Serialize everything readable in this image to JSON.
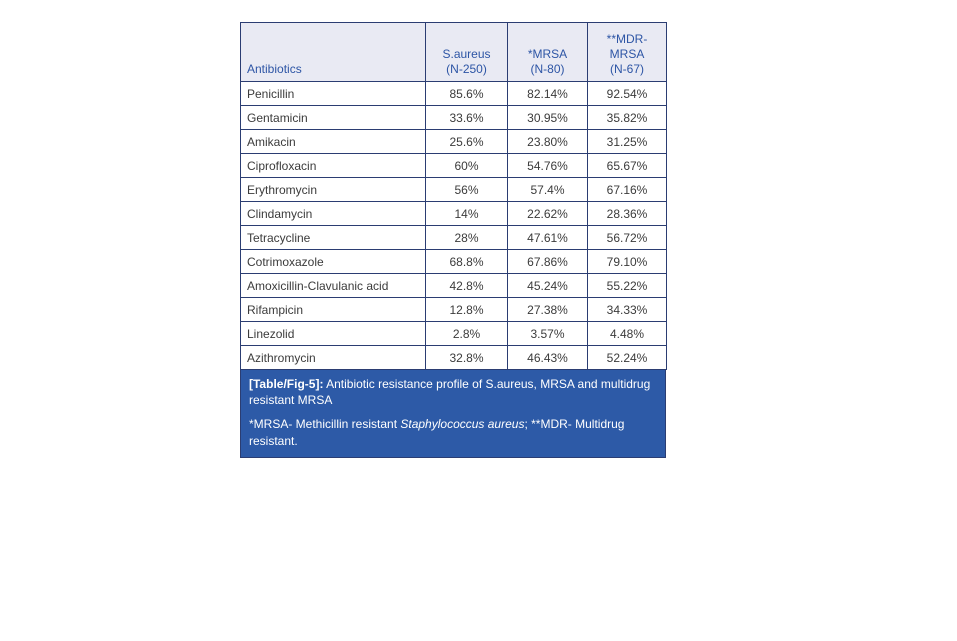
{
  "colors": {
    "header_bg": "#e9eaf3",
    "header_text": "#2d55a5",
    "grid_border": "#2b3d72",
    "body_text": "#3b3b3b",
    "caption_bg": "#2d5aa7",
    "caption_text": "#ffffff",
    "page_bg": "#ffffff"
  },
  "table": {
    "columns": {
      "antibiotics": "Antibiotics",
      "saureus": "S.aureus\n(N-250)",
      "mrsa": "*MRSA\n(N-80)",
      "mdr_mrsa": "**MDR-\nMRSA\n(N-67)"
    },
    "rows": [
      {
        "antibiotic": "Penicillin",
        "saureus": "85.6%",
        "mrsa": "82.14%",
        "mdr_mrsa": "92.54%"
      },
      {
        "antibiotic": "Gentamicin",
        "saureus": "33.6%",
        "mrsa": "30.95%",
        "mdr_mrsa": "35.82%"
      },
      {
        "antibiotic": "Amikacin",
        "saureus": "25.6%",
        "mrsa": "23.80%",
        "mdr_mrsa": "31.25%"
      },
      {
        "antibiotic": "Ciprofloxacin",
        "saureus": "60%",
        "mrsa": "54.76%",
        "mdr_mrsa": "65.67%"
      },
      {
        "antibiotic": "Erythromycin",
        "saureus": "56%",
        "mrsa": "57.4%",
        "mdr_mrsa": "67.16%"
      },
      {
        "antibiotic": "Clindamycin",
        "saureus": "14%",
        "mrsa": "22.62%",
        "mdr_mrsa": "28.36%"
      },
      {
        "antibiotic": "Tetracycline",
        "saureus": "28%",
        "mrsa": "47.61%",
        "mdr_mrsa": "56.72%"
      },
      {
        "antibiotic": "Cotrimoxazole",
        "saureus": "68.8%",
        "mrsa": "67.86%",
        "mdr_mrsa": "79.10%"
      },
      {
        "antibiotic": "Amoxicillin-Clavulanic acid",
        "saureus": "42.8%",
        "mrsa": "45.24%",
        "mdr_mrsa": "55.22%"
      },
      {
        "antibiotic": "Rifampicin",
        "saureus": "12.8%",
        "mrsa": "27.38%",
        "mdr_mrsa": "34.33%"
      },
      {
        "antibiotic": "Linezolid",
        "saureus": "2.8%",
        "mrsa": "3.57%",
        "mdr_mrsa": "4.48%"
      },
      {
        "antibiotic": "Azithromycin",
        "saureus": "32.8%",
        "mrsa": "46.43%",
        "mdr_mrsa": "52.24%"
      }
    ],
    "caption": {
      "label": "[Table/Fig-5]:",
      "text": " Antibiotic resistance profile of S.aureus, MRSA and multidrug resistant MRSA",
      "footnote_pre": "*MRSA- Methicillin resistant ",
      "footnote_italic": "Staphylococcus aureus",
      "footnote_post": "; **MDR- Multidrug resistant."
    }
  },
  "chart_data": {
    "type": "table",
    "title": "[Table/Fig-5]: Antibiotic resistance profile of S.aureus, MRSA and multidrug resistant MRSA",
    "columns": [
      "Antibiotics",
      "S.aureus (N-250)",
      "*MRSA (N-80)",
      "**MDR-MRSA (N-67)"
    ],
    "categories": [
      "Penicillin",
      "Gentamicin",
      "Amikacin",
      "Ciprofloxacin",
      "Erythromycin",
      "Clindamycin",
      "Tetracycline",
      "Cotrimoxazole",
      "Amoxicillin-Clavulanic acid",
      "Rifampicin",
      "Linezolid",
      "Azithromycin"
    ],
    "series": [
      {
        "name": "S.aureus (N-250)",
        "values": [
          85.6,
          33.6,
          25.6,
          60,
          56,
          14,
          28,
          68.8,
          42.8,
          12.8,
          2.8,
          32.8
        ]
      },
      {
        "name": "*MRSA (N-80)",
        "values": [
          82.14,
          30.95,
          23.8,
          54.76,
          57.4,
          22.62,
          47.61,
          67.86,
          45.24,
          27.38,
          3.57,
          46.43
        ]
      },
      {
        "name": "**MDR-MRSA (N-67)",
        "values": [
          92.54,
          35.82,
          31.25,
          65.67,
          67.16,
          28.36,
          56.72,
          79.1,
          55.22,
          34.33,
          4.48,
          52.24
        ]
      }
    ],
    "value_unit": "%",
    "footnote": "*MRSA- Methicillin resistant Staphylococcus aureus; **MDR- Multidrug resistant."
  }
}
